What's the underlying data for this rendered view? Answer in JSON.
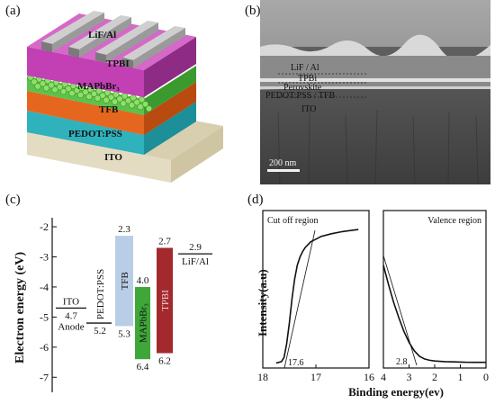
{
  "panels": {
    "a": {
      "label": "(a)",
      "layers": [
        "LiF/Al",
        "TPBI",
        "MAPbBr₃",
        "TFB",
        "PEDOT:PSS",
        "ITO"
      ]
    },
    "b": {
      "label": "(b)",
      "layers": [
        "LiF / Al",
        "TPBi",
        "Perovskite",
        "PEDOT:PSS / TFB",
        "ITO"
      ],
      "scale_bar": "200 nm"
    },
    "c": {
      "label": "(c)",
      "ylabel": "Electron energy (eV)",
      "ylim": [
        -7.5,
        -1.7
      ],
      "yticks": [
        "-2",
        "-3",
        "-4",
        "-5",
        "-6",
        "-7"
      ],
      "levels": [
        {
          "name": "ITO",
          "value_label": "4.7",
          "sub_label": "Anode",
          "value": -4.7
        },
        {
          "name": "PEDOT:PSS",
          "value_label": "5.2",
          "value": -5.2
        },
        {
          "name": "TFB",
          "top_label": "2.3",
          "bottom_label": "5.3",
          "top": -2.3,
          "bottom": -5.3,
          "color": "#b9cde6"
        },
        {
          "name": "MAPbBr₃",
          "top_label": "4.0",
          "bottom_label": "6.4",
          "top": -4.0,
          "bottom": -6.4,
          "color": "#3fa73a"
        },
        {
          "name": "TPBI",
          "top_label": "2.7",
          "bottom_label": "6.2",
          "top": -2.7,
          "bottom": -6.2,
          "color": "#a3292d"
        },
        {
          "name": "LiF/Al",
          "value_label": "2.9",
          "value": -2.9
        }
      ]
    },
    "d": {
      "label": "(d)",
      "ylabel": "Intensity(a.u)",
      "xlabel": "Binding energy(ev)",
      "left": {
        "title": "Cut off region",
        "xticks": [
          "18",
          "17",
          "16"
        ],
        "annotation": "17.6"
      },
      "right": {
        "title": "Valence region",
        "xticks": [
          "4",
          "3",
          "2",
          "1",
          "0"
        ],
        "annotation": "2.8"
      }
    }
  },
  "chart_data": [
    {
      "type": "bar",
      "ylabel": "Electron energy (eV)",
      "ylim": [
        -7.5,
        -1.7
      ],
      "categories": [
        "ITO",
        "PEDOT:PSS",
        "TFB",
        "MAPbBr₃",
        "TPBI",
        "LiF/Al"
      ],
      "series": [
        {
          "name": "top",
          "values": [
            -4.7,
            -5.2,
            -2.3,
            -4.0,
            -2.7,
            -2.9
          ]
        },
        {
          "name": "bottom",
          "values": [
            -4.7,
            -5.2,
            -5.3,
            -6.4,
            -6.2,
            -2.9
          ]
        }
      ]
    },
    {
      "type": "line",
      "title": "Cut off region",
      "xlabel": "Binding energy(ev)",
      "ylabel": "Intensity(a.u)",
      "xlim": [
        18,
        16
      ],
      "x": [
        17.75,
        17.65,
        17.6,
        17.55,
        17.5,
        17.45,
        17.4,
        17.35,
        17.3,
        17.25,
        17.2,
        17.15,
        17.1,
        17.0,
        16.9,
        16.7,
        16.5,
        16.3,
        16.2
      ],
      "series": [
        {
          "values": [
            0.01,
            0.02,
            0.05,
            0.15,
            0.3,
            0.48,
            0.62,
            0.72,
            0.78,
            0.82,
            0.85,
            0.87,
            0.89,
            0.91,
            0.93,
            0.95,
            0.965,
            0.975,
            0.98
          ]
        }
      ]
    },
    {
      "type": "line",
      "title": "Valence region",
      "xlabel": "Binding energy(ev)",
      "ylabel": "Intensity(a.u)",
      "xlim": [
        4,
        0
      ],
      "x": [
        4.0,
        3.8,
        3.6,
        3.4,
        3.2,
        3.0,
        2.8,
        2.6,
        2.4,
        2.2,
        2.0,
        1.6,
        1.2,
        0.8,
        0.4,
        0.0
      ],
      "series": [
        {
          "values": [
            0.72,
            0.58,
            0.45,
            0.34,
            0.24,
            0.16,
            0.1,
            0.06,
            0.04,
            0.03,
            0.025,
            0.02,
            0.018,
            0.016,
            0.015,
            0.015
          ]
        }
      ]
    }
  ]
}
